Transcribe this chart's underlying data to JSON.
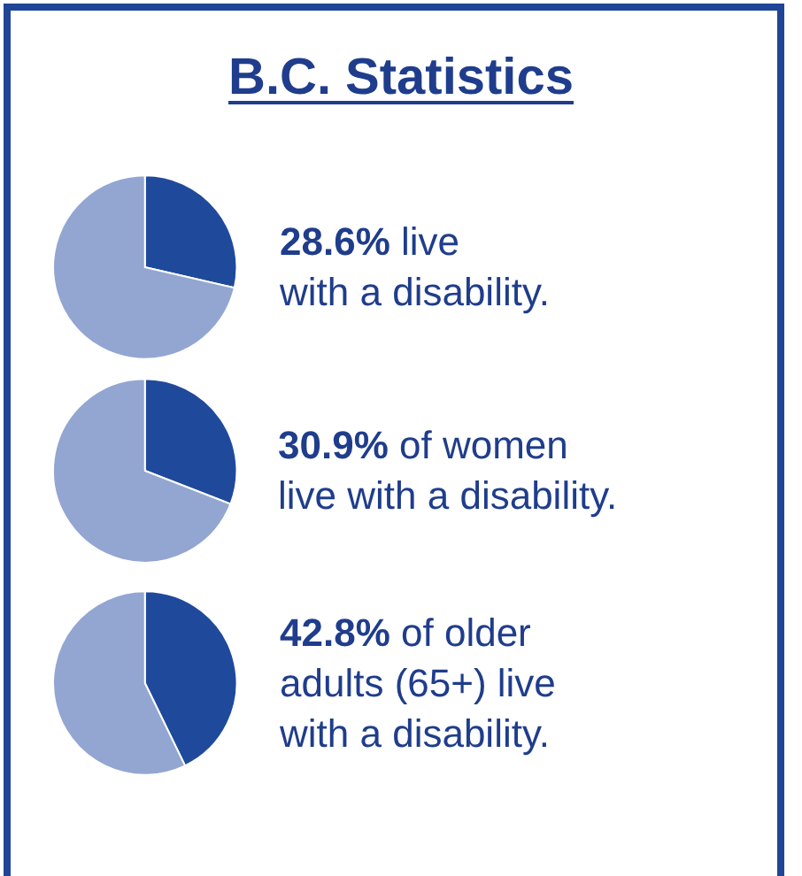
{
  "chart_data": [
    {
      "type": "pie",
      "title": "B.C. Statistics",
      "categories": [
        null,
        null
      ],
      "values": [
        28.6,
        71.4
      ],
      "colors": [
        "#1f4a9c",
        "#93a6d2"
      ],
      "annotations": [
        "28.6% live\nwith a disability."
      ]
    },
    {
      "type": "pie",
      "categories": [
        null,
        null
      ],
      "values": [
        30.9,
        69.1
      ],
      "colors": [
        "#1f4a9c",
        "#93a6d2"
      ],
      "annotations": [
        "30.9% of women\nlive with a disability."
      ]
    },
    {
      "type": "pie",
      "categories": [
        null,
        null
      ],
      "values": [
        42.8,
        57.2
      ],
      "colors": [
        "#1f4a9c",
        "#93a6d2"
      ],
      "annotations": [
        "42.8% of older\nadults (65+) live\nwith a disability."
      ]
    }
  ]
}
